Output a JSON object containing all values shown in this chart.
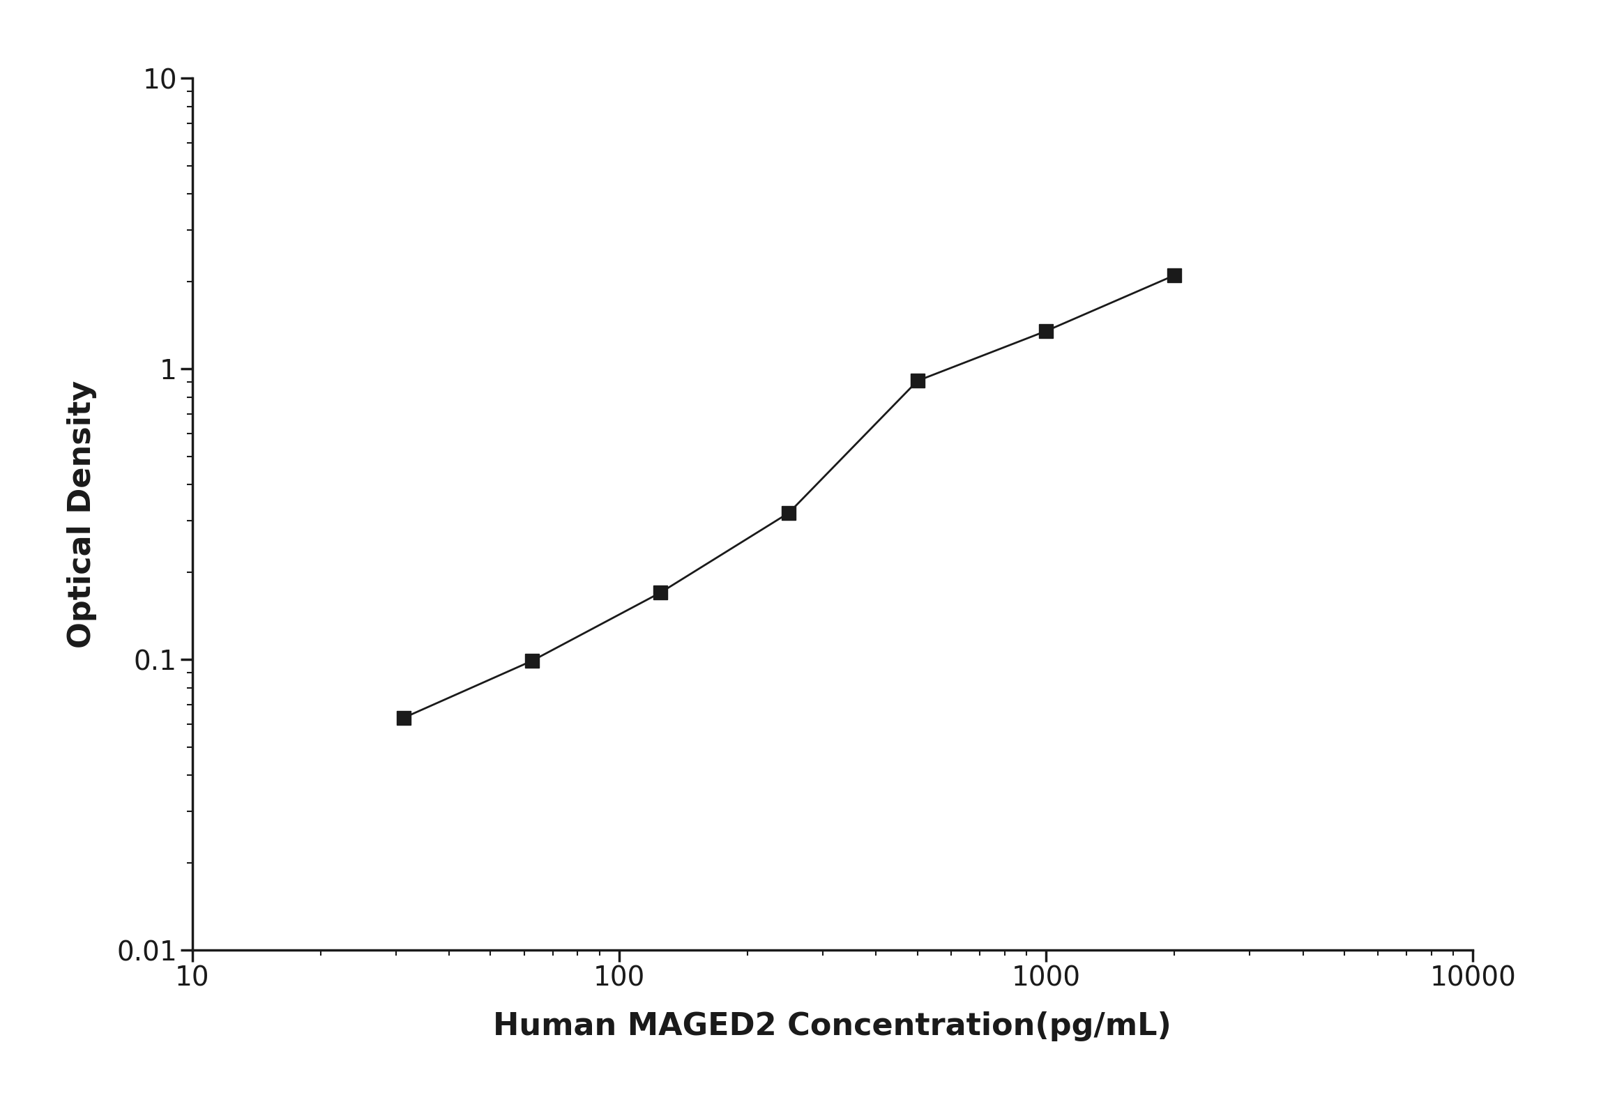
{
  "x": [
    31.25,
    62.5,
    125,
    250,
    500,
    1000,
    2000
  ],
  "y": [
    0.063,
    0.099,
    0.17,
    0.32,
    0.91,
    1.35,
    2.1
  ],
  "xlim": [
    10,
    10000
  ],
  "ylim": [
    0.01,
    10
  ],
  "xlabel": "Human MAGED2 Concentration(pg/mL)",
  "ylabel": "Optical Density",
  "line_color": "#1a1a1a",
  "marker": "s",
  "marker_color": "#1a1a1a",
  "marker_size": 14,
  "line_width": 2.0,
  "background_color": "#ffffff",
  "xlabel_fontsize": 32,
  "ylabel_fontsize": 32,
  "tick_fontsize": 28,
  "tick_label_color": "#1a1a1a",
  "axis_color": "#1a1a1a",
  "xtick_labels": [
    "10",
    "100",
    "1000",
    "10000"
  ],
  "xtick_values": [
    10,
    100,
    1000,
    10000
  ],
  "ytick_labels": [
    "0.01",
    "0.1",
    "1",
    "10"
  ],
  "ytick_values": [
    0.01,
    0.1,
    1,
    10
  ]
}
